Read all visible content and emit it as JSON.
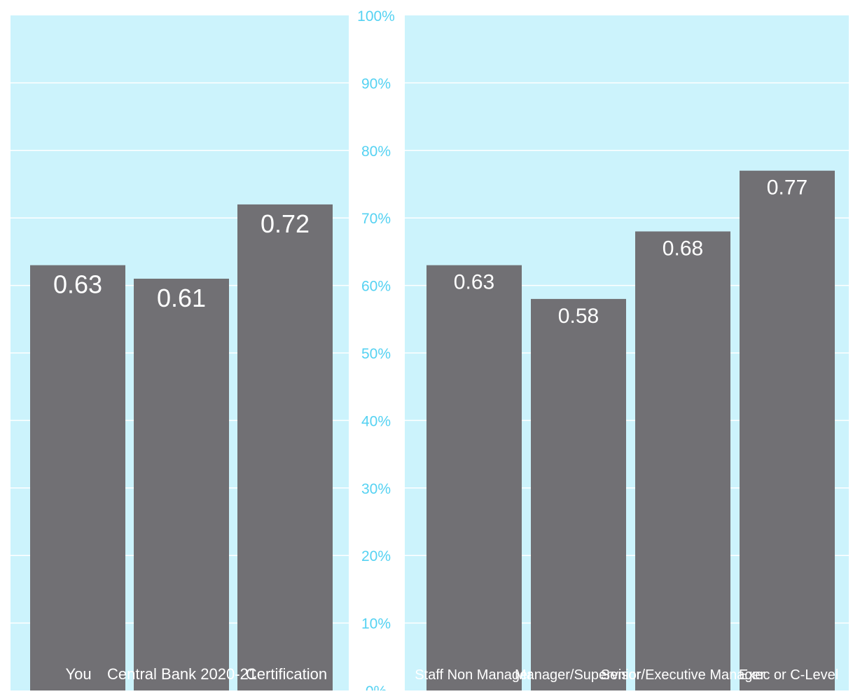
{
  "colors": {
    "panel_background": "#ccf3fc",
    "gridline": "#ffffff",
    "bar": "#717074",
    "bar_value_label": "#ffffff",
    "axis_label": "#55d2f2",
    "category_label": "#ffffff"
  },
  "chart_data": [
    {
      "type": "bar",
      "title": "",
      "xlabel": "",
      "ylabel": "",
      "ylim": [
        0,
        1
      ],
      "y_tick_labels": [
        "0%",
        "10%",
        "20%",
        "30%",
        "40%",
        "50%",
        "60%",
        "70%",
        "80%",
        "90%",
        "100%"
      ],
      "y_tick_values": [
        0,
        0.1,
        0.2,
        0.3,
        0.4,
        0.5,
        0.6,
        0.7,
        0.8,
        0.9,
        1.0
      ],
      "grid": true,
      "categories": [
        "You",
        "Central Bank 2020-21",
        "Certification"
      ],
      "values": [
        0.63,
        0.61,
        0.72
      ],
      "value_labels": [
        "0.63",
        "0.61",
        "0.72"
      ]
    },
    {
      "type": "bar",
      "title": "",
      "xlabel": "",
      "ylabel": "",
      "ylim": [
        0,
        1
      ],
      "grid": true,
      "categories": [
        "Staff Non Manager",
        "Manager/Supervisor",
        "Senior/Executive Manager",
        "Exec or C-Level"
      ],
      "values": [
        0.63,
        0.58,
        0.68,
        0.77
      ],
      "value_labels": [
        "0.63",
        "0.58",
        "0.68",
        "0.77"
      ]
    }
  ]
}
